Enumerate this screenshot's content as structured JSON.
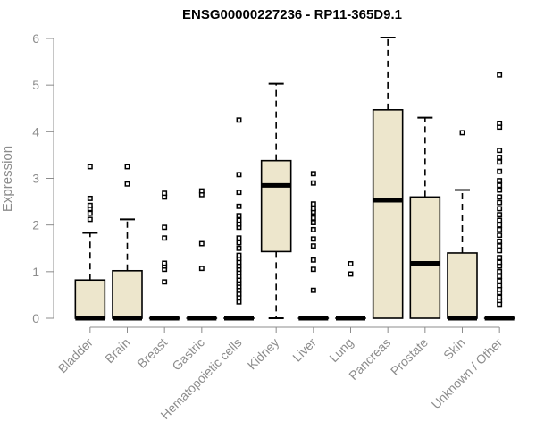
{
  "chart_data": {
    "type": "boxplot",
    "title": "ENSG00000227236 - RP11-365D9.1",
    "ylabel": "Expression",
    "xlabel": "",
    "ylim": [
      0,
      6
    ],
    "yticks": [
      0,
      1,
      2,
      3,
      4,
      5,
      6
    ],
    "grid": false,
    "colors": {
      "box_fill": "#ede6cc",
      "stroke": "#000000",
      "axis": "#8c8c8c"
    },
    "categories": [
      "Bladder",
      "Brain",
      "Breast",
      "Gastric",
      "Hematopoietic cells",
      "Kidney",
      "Liver",
      "Lung",
      "Pancreas",
      "Prostate",
      "Skin",
      "Unknown / Other"
    ],
    "boxes": [
      {
        "q1": 0,
        "median": 0,
        "q3": 0.82,
        "whisker_low": 0,
        "whisker_high": 1.83,
        "outliers": [
          2.12,
          2.25,
          2.35,
          2.42,
          2.57,
          3.25
        ]
      },
      {
        "q1": 0,
        "median": 0,
        "q3": 1.02,
        "whisker_low": 0,
        "whisker_high": 2.12,
        "outliers": [
          2.88,
          3.25
        ]
      },
      {
        "q1": 0,
        "median": 0,
        "q3": 0,
        "whisker_low": 0,
        "whisker_high": 0,
        "outliers": [
          0.78,
          1.05,
          1.12,
          1.18,
          1.72,
          1.95,
          2.6,
          2.68
        ]
      },
      {
        "q1": 0,
        "median": 0,
        "q3": 0,
        "whisker_low": 0,
        "whisker_high": 0,
        "outliers": [
          1.07,
          1.6,
          2.65,
          2.73
        ]
      },
      {
        "q1": 0,
        "median": 0,
        "q3": 0,
        "whisker_low": 0,
        "whisker_high": 0,
        "outliers": [
          0.35,
          0.45,
          0.52,
          0.6,
          0.68,
          0.75,
          0.82,
          0.9,
          0.98,
          1.05,
          1.12,
          1.2,
          1.28,
          1.35,
          1.5,
          1.62,
          1.72,
          1.95,
          2.02,
          2.1,
          2.2,
          2.4,
          2.7,
          3.08,
          4.25
        ]
      },
      {
        "q1": 1.43,
        "median": 2.85,
        "q3": 3.38,
        "whisker_low": 0,
        "whisker_high": 5.03,
        "outliers": []
      },
      {
        "q1": 0,
        "median": 0,
        "q3": 0,
        "whisker_low": 0,
        "whisker_high": 0,
        "outliers": [
          0.6,
          1.05,
          1.25,
          1.55,
          1.7,
          1.9,
          2.05,
          2.15,
          2.28,
          2.35,
          2.45,
          2.9,
          3.1
        ]
      },
      {
        "q1": 0,
        "median": 0,
        "q3": 0,
        "whisker_low": 0,
        "whisker_high": 0,
        "outliers": [
          0.95,
          1.17
        ]
      },
      {
        "q1": 0,
        "median": 2.53,
        "q3": 4.47,
        "whisker_low": 0,
        "whisker_high": 6.02,
        "outliers": []
      },
      {
        "q1": 0,
        "median": 1.18,
        "q3": 2.6,
        "whisker_low": 0,
        "whisker_high": 4.3,
        "outliers": []
      },
      {
        "q1": 0,
        "median": 0,
        "q3": 1.4,
        "whisker_low": 0,
        "whisker_high": 2.75,
        "outliers": [
          3.98
        ]
      },
      {
        "q1": 0,
        "median": 0,
        "q3": 0,
        "whisker_low": 0,
        "whisker_high": 0,
        "outliers": [
          0.3,
          0.38,
          0.45,
          0.55,
          0.62,
          0.7,
          0.8,
          0.9,
          1.0,
          1.12,
          1.2,
          1.3,
          1.45,
          1.55,
          1.65,
          1.78,
          1.9,
          2.0,
          2.1,
          2.22,
          2.35,
          2.48,
          2.6,
          2.75,
          2.85,
          2.95,
          3.15,
          3.35,
          3.45,
          3.6,
          4.1,
          4.18,
          5.22
        ]
      }
    ]
  }
}
